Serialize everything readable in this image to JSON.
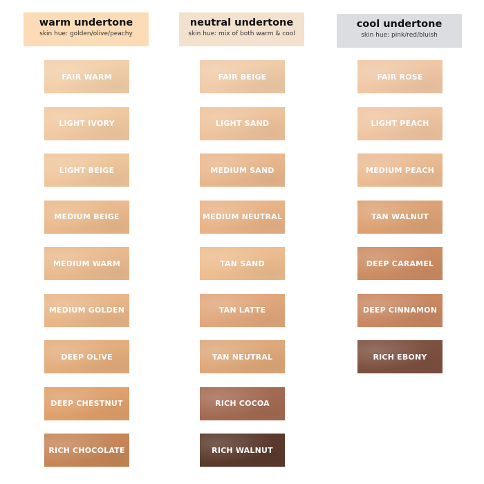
{
  "columns": [
    {
      "title": "warm undertone",
      "subtitle": "skin hue: golden/olive/peachy",
      "header_color": "#fcdcb6",
      "shades": [
        {
          "name": "FAIR WARM",
          "color": "#f2cfa9"
        },
        {
          "name": "LIGHT IVORY",
          "color": "#f0c9a0"
        },
        {
          "name": "LIGHT BEIGE",
          "color": "#efc69c"
        },
        {
          "name": "MEDIUM BEIGE",
          "color": "#eab98c"
        },
        {
          "name": "MEDIUM WARM",
          "color": "#e9ba8e"
        },
        {
          "name": "MEDIUM GOLDEN",
          "color": "#e8b688"
        },
        {
          "name": "DEEP OLIVE",
          "color": "#e4ad7c"
        },
        {
          "name": "DEEP CHESTNUT",
          "color": "#dfa06b"
        },
        {
          "name": "RICH CHOCOLATE",
          "color": "#c68658"
        }
      ]
    },
    {
      "title": "neutral undertone",
      "subtitle": "skin hue: mix of both warm & cool",
      "header_color": "#f2e1cd",
      "shades": [
        {
          "name": "FAIR BEIGE",
          "color": "#f0cba7"
        },
        {
          "name": "LIGHT SAND",
          "color": "#eec39c"
        },
        {
          "name": "MEDIUM SAND",
          "color": "#e9b78d"
        },
        {
          "name": "MEDIUM NEUTRAL",
          "color": "#e8b387"
        },
        {
          "name": "TAN SAND",
          "color": "#ecbd8f"
        },
        {
          "name": "TAN LATTE",
          "color": "#e1a77c"
        },
        {
          "name": "TAN NEUTRAL",
          "color": "#dea879"
        },
        {
          "name": "RICH COCOA",
          "color": "#a36a52"
        },
        {
          "name": "RICH WALNUT",
          "color": "#5a3a2c"
        }
      ]
    },
    {
      "title": "cool undertone",
      "subtitle": "skin hue: pink/red/bluish",
      "header_color": "#dcdde1",
      "shades": [
        {
          "name": "FAIR ROSE",
          "color": "#f0c7a5"
        },
        {
          "name": "LIGHT PEACH",
          "color": "#efc5a1"
        },
        {
          "name": "MEDIUM PEACH",
          "color": "#ebbb92"
        },
        {
          "name": "TAN WALNUT",
          "color": "#dca274"
        },
        {
          "name": "DEEP CARAMEL",
          "color": "#cc8c62"
        },
        {
          "name": "DEEP CINNAMON",
          "color": "#c98862"
        },
        {
          "name": "RICH EBONY",
          "color": "#7d5040"
        }
      ]
    }
  ]
}
